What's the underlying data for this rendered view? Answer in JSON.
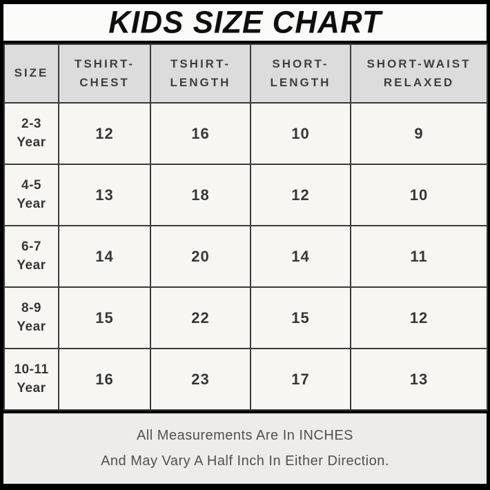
{
  "title": "KIDS SIZE CHART",
  "table": {
    "headers": [
      "SIZE",
      "TSHIRT-CHEST",
      "TSHIRT-LENGTH",
      "SHORT-LENGTH",
      "SHORT-WAIST RELAXED"
    ],
    "rows": [
      {
        "size": "2-3 Year",
        "values": [
          "12",
          "16",
          "10",
          "9"
        ]
      },
      {
        "size": "4-5 Year",
        "values": [
          "13",
          "18",
          "12",
          "10"
        ]
      },
      {
        "size": "6-7 Year",
        "values": [
          "14",
          "20",
          "14",
          "11"
        ]
      },
      {
        "size": "8-9 Year",
        "values": [
          "15",
          "22",
          "15",
          "12"
        ]
      },
      {
        "size": "10-11 Year",
        "values": [
          "16",
          "23",
          "17",
          "13"
        ]
      }
    ]
  },
  "footer": {
    "line1": "All Measurements Are In INCHES",
    "line2": "And May Vary A Half Inch In Either Direction."
  },
  "colors": {
    "frame": "#000000",
    "title_bg": "#fbfbfa",
    "header_bg": "#dcdcdc",
    "cell_bg": "#f7f6f3",
    "footer_bg": "#edecea",
    "grid_line": "#3a3a3a",
    "text": "#363636",
    "footer_text": "#53504c"
  },
  "chart_data": {
    "type": "table",
    "title": "KIDS SIZE CHART",
    "columns": [
      "SIZE",
      "TSHIRT-CHEST",
      "TSHIRT-LENGTH",
      "SHORT-LENGTH",
      "SHORT-WAIST RELAXED"
    ],
    "rows": [
      [
        "2-3 Year",
        12,
        16,
        10,
        9
      ],
      [
        "4-5 Year",
        13,
        18,
        12,
        10
      ],
      [
        "6-7 Year",
        14,
        20,
        14,
        11
      ],
      [
        "8-9 Year",
        15,
        22,
        15,
        12
      ],
      [
        "10-11 Year",
        16,
        23,
        17,
        13
      ]
    ],
    "units": "inches",
    "notes": [
      "All Measurements Are In INCHES",
      "And May Vary A Half Inch In Either Direction."
    ]
  }
}
